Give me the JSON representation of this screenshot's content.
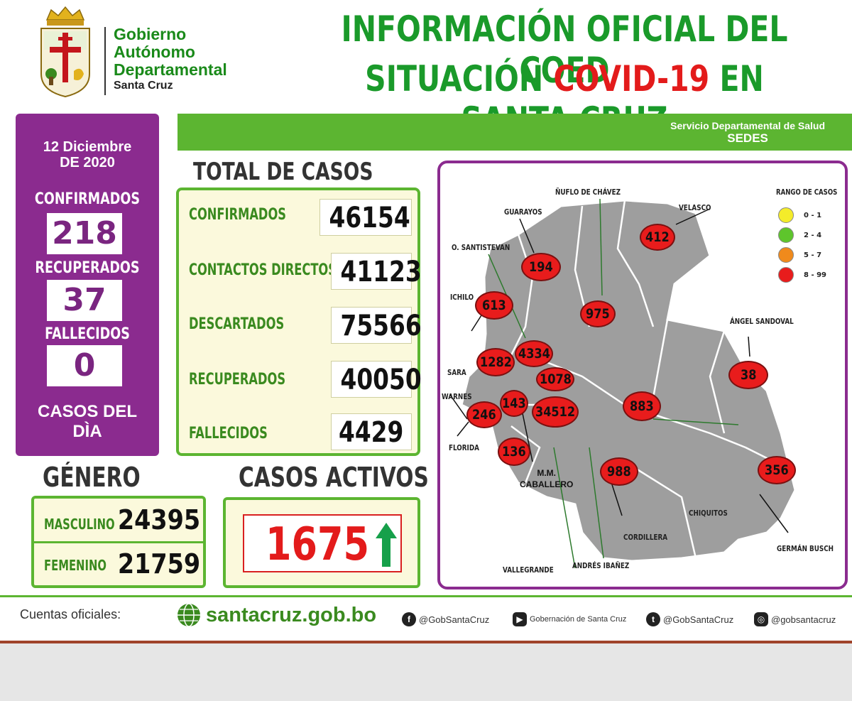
{
  "header": {
    "gov_line1": "Gobierno",
    "gov_line2": "Autónomo",
    "gov_line3": "Departamental",
    "gov_line4": "Santa Cruz",
    "title_line1": "INFORMACIÓN OFICIAL DEL COED",
    "title_line2_part1": "SITUACIÓN",
    "title_line2_part2": "COVID-19",
    "title_line2_part3": "EN SANTA CRUZ"
  },
  "sedes": {
    "line1": "Servicio Departamental de Salud",
    "line2": "SEDES"
  },
  "summary": {
    "date_line1": "12 Diciembre",
    "date_line2": "DE 2020",
    "confirmados_label": "CONFIRMADOS",
    "confirmados_value": "218",
    "recuperados_label": "RECUPERADOS",
    "recuperados_value": "37",
    "fallecidos_label": "FALLECIDOS",
    "fallecidos_value": "0",
    "day_label_line1": "CASOS DEL",
    "day_label_line2": "DÌA"
  },
  "total": {
    "title": "TOTAL DE CASOS",
    "rows": [
      {
        "label": "CONFIRMADOS",
        "value": "46154"
      },
      {
        "label": "CONTACTOS DIRECTOS",
        "value": "41123"
      },
      {
        "label": "DESCARTADOS",
        "value": "75566"
      },
      {
        "label": "RECUPERADOS",
        "value": "40050"
      },
      {
        "label": "FALLECIDOS",
        "value": "4429"
      }
    ]
  },
  "gender": {
    "title": "GÉNERO",
    "male_label": "MASCULINO",
    "male_value": "24395",
    "female_label": "FEMENINO",
    "female_value": "21759"
  },
  "active": {
    "title": "CASOS ACTIVOS",
    "value": "1675",
    "trend": "up"
  },
  "map": {
    "legend_title": "RANGO DE CASOS",
    "legend": [
      {
        "label": "0 - 1",
        "color": "#f4ec2a"
      },
      {
        "label": "2 - 4",
        "color": "#5ec52c"
      },
      {
        "label": "5 - 7",
        "color": "#f08a1c"
      },
      {
        "label": "8 - 99",
        "color": "#e81c1c"
      }
    ],
    "provinces": [
      {
        "name": "GUARAYOS",
        "value": "194"
      },
      {
        "name": "ÑUFLO DE CHÁVEZ",
        "value": "975"
      },
      {
        "name": "VELASCO",
        "value": "412"
      },
      {
        "name": "O. SANTISTEVAN",
        "value": "4334"
      },
      {
        "name": "ICHILO",
        "value": "613"
      },
      {
        "name": "SARA",
        "value": "1282"
      },
      {
        "name": "WARNES",
        "value": "1078"
      },
      {
        "name": "ÁNGEL SANDOVAL",
        "value": "38"
      },
      {
        "name": "FLORIDA",
        "value": "246"
      },
      {
        "name": "M.M. CABALLERO",
        "value": "143"
      },
      {
        "name": "ANDRÉS IBAÑEZ",
        "value": "34512"
      },
      {
        "name": "CHIQUITOS",
        "value": "883"
      },
      {
        "name": "VALLEGRANDE",
        "value": "136"
      },
      {
        "name": "CORDILLERA",
        "value": "988"
      },
      {
        "name": "GERMÁN BUSCH",
        "value": "356"
      }
    ],
    "label_mm1": "M.M.",
    "label_mm2": "CABALLERO"
  },
  "footer": {
    "label": "Cuentas oficiales:",
    "website": "santacruz.gob.bo",
    "facebook": "@GobSantaCruz",
    "youtube": "Gobernación de Santa Cruz",
    "twitter": "@GobSantaCruz",
    "instagram": "@gobsantacruz"
  }
}
